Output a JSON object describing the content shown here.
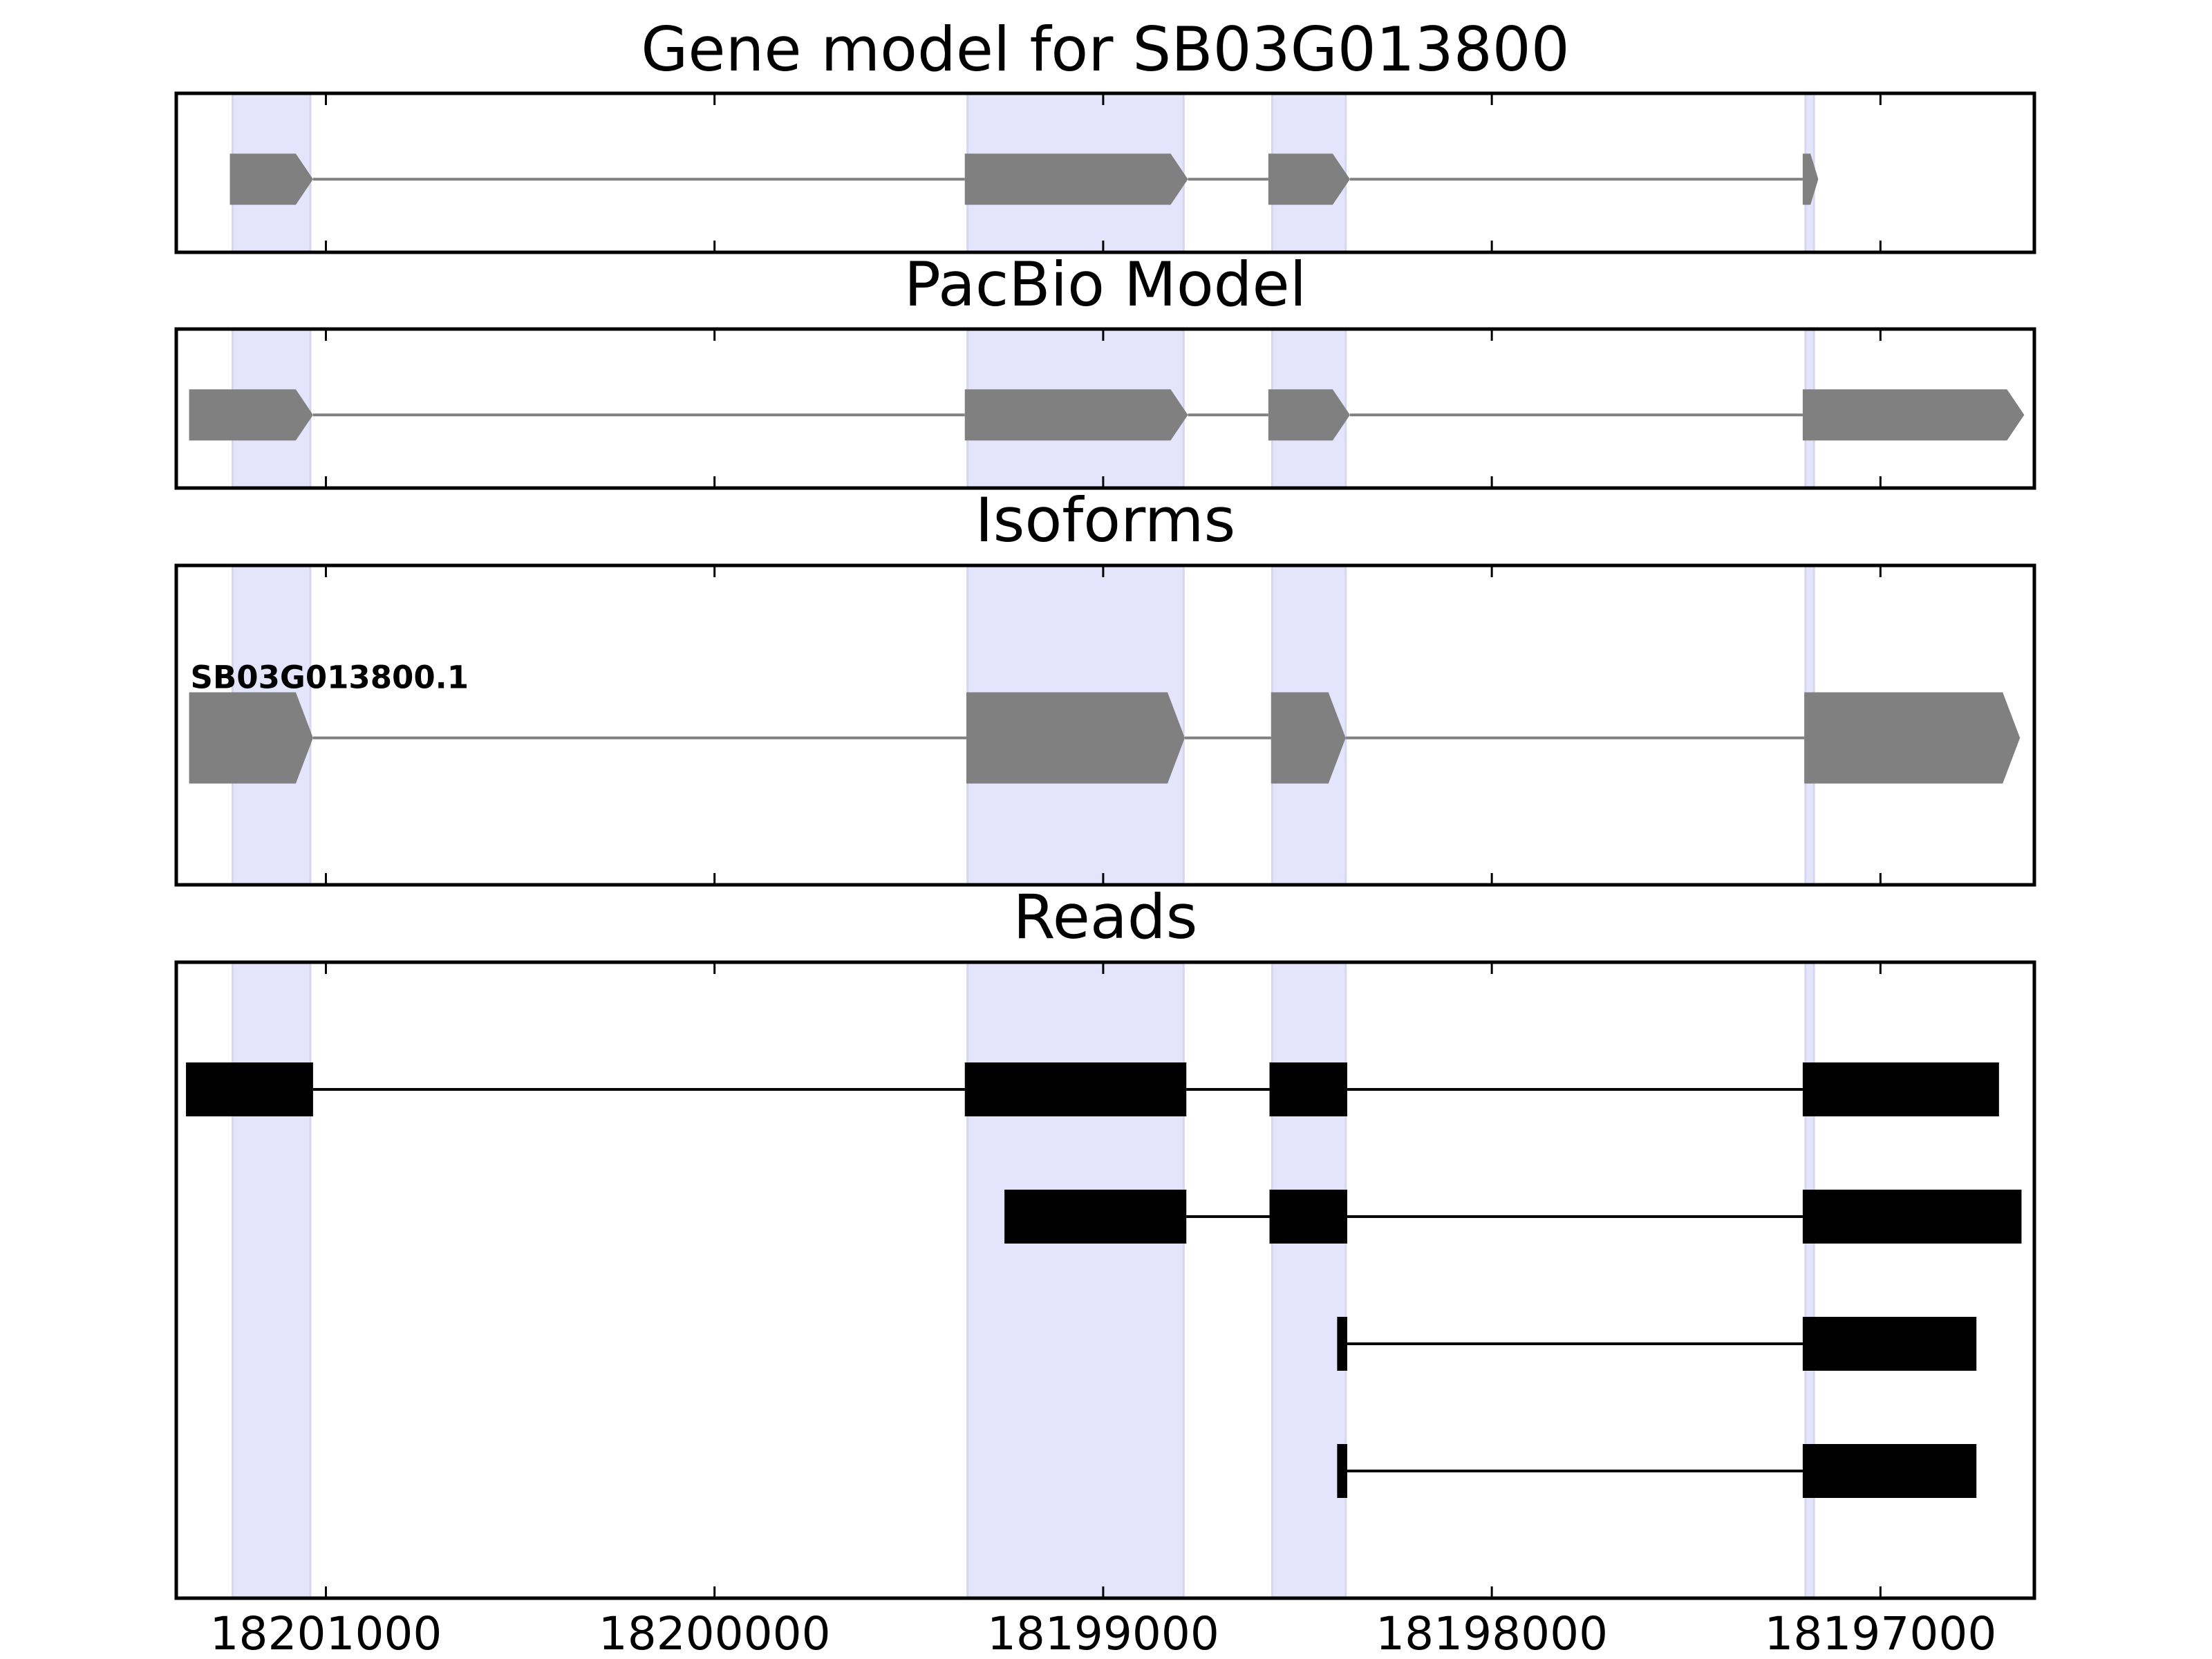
{
  "chart_data": [
    {
      "type": "gene-model",
      "title": "Gene model for SB03G013800",
      "color": "#808080",
      "xlim": [
        18201385,
        18196604
      ],
      "xticks": [
        18201000,
        18200000,
        18199000,
        18198000,
        18197000
      ],
      "highlights": [
        [
          18201240,
          18201040
        ],
        [
          18199349,
          18198793
        ],
        [
          18198565,
          18198376
        ],
        [
          18197193,
          18197171
        ]
      ],
      "features": [
        {
          "exons": [
            [
              18201247,
              18201033
            ],
            [
              18199356,
              18198782
            ],
            [
              18198575,
              18198365
            ],
            [
              18197200,
              18197160
            ]
          ]
        }
      ]
    },
    {
      "type": "gene-model",
      "title": "PacBio Model",
      "color": "#808080",
      "xlim": [
        18201385,
        18196604
      ],
      "xticks": [
        18201000,
        18200000,
        18199000,
        18198000,
        18197000
      ],
      "highlights": [
        [
          18201240,
          18201040
        ],
        [
          18199349,
          18198793
        ],
        [
          18198565,
          18198376
        ],
        [
          18197193,
          18197171
        ]
      ],
      "features": [
        {
          "exons": [
            [
              18201352,
              18201033
            ],
            [
              18199356,
              18198782
            ],
            [
              18198575,
              18198365
            ],
            [
              18197200,
              18196630
            ]
          ]
        }
      ]
    },
    {
      "type": "gene-model",
      "title": "Isoforms",
      "color": "#808080",
      "xlim": [
        18201385,
        18196604
      ],
      "xticks": [
        18201000,
        18200000,
        18199000,
        18198000,
        18197000
      ],
      "highlights": [
        [
          18201240,
          18201040
        ],
        [
          18199349,
          18198793
        ],
        [
          18198565,
          18198376
        ],
        [
          18197193,
          18197171
        ]
      ],
      "features": [
        {
          "label": "SB03G013800.1",
          "exons": [
            [
              18201352,
              18201033
            ],
            [
              18199352,
              18198790
            ],
            [
              18198568,
              18198376
            ],
            [
              18197196,
              18196641
            ]
          ]
        }
      ]
    },
    {
      "type": "reads",
      "title": "Reads",
      "color": "#000000",
      "xlim": [
        18201385,
        18196604
      ],
      "xticks": [
        18201000,
        18200000,
        18199000,
        18198000,
        18197000
      ],
      "highlights": [
        [
          18201240,
          18201040
        ],
        [
          18199349,
          18198793
        ],
        [
          18198565,
          18198376
        ],
        [
          18197193,
          18197171
        ]
      ],
      "features": [
        {
          "exons": [
            [
              18201360,
              18201033
            ],
            [
              18199356,
              18198786
            ],
            [
              18198572,
              18198372
            ],
            [
              18197200,
              18196695
            ]
          ]
        },
        {
          "exons": [
            [
              18199254,
              18198786
            ],
            [
              18198572,
              18198372
            ],
            [
              18197200,
              18196637
            ]
          ]
        },
        {
          "exons": [
            [
              18198398,
              18198372
            ],
            [
              18197200,
              18196753
            ]
          ]
        },
        {
          "exons": [
            [
              18198398,
              18198372
            ],
            [
              18197200,
              18196753
            ]
          ]
        }
      ]
    }
  ]
}
